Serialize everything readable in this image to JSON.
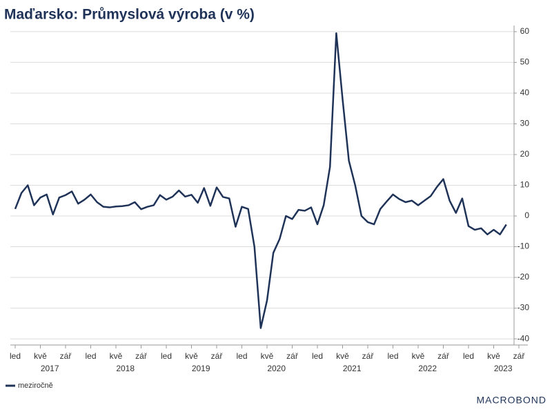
{
  "chart_data": {
    "type": "line",
    "title": "Maďarsko: Průmyslová výroba (v %)",
    "categories": [
      "led",
      null,
      null,
      null,
      "kvě",
      null,
      null,
      null,
      "zář",
      null,
      null,
      null,
      "led",
      null,
      null,
      null,
      "kvě",
      null,
      null,
      null,
      "zář",
      null,
      null,
      null,
      "led",
      null,
      null,
      null,
      "kvě",
      null,
      null,
      null,
      "zář",
      null,
      null,
      null,
      "led",
      null,
      null,
      null,
      "kvě",
      null,
      null,
      null,
      "zář",
      null,
      null,
      null,
      "led",
      null,
      null,
      null,
      "kvě",
      null,
      null,
      null,
      "zář",
      null,
      null,
      null,
      "led",
      null,
      null,
      null,
      "kvě",
      null,
      null,
      null,
      "zář",
      null,
      null,
      null,
      "led",
      null,
      null,
      null,
      "kvě",
      null,
      null,
      null,
      "zář"
    ],
    "years": [
      "2017",
      "2018",
      "2019",
      "2020",
      "2021",
      "2022",
      "2023"
    ],
    "series": [
      {
        "name": "meziročně",
        "color": "#1f3358",
        "values": [
          2.3,
          7.5,
          10,
          3.5,
          6,
          7,
          0.5,
          6,
          6.8,
          8,
          4,
          5.3,
          7,
          4.5,
          3,
          2.8,
          3.1,
          3.2,
          3.5,
          4.5,
          2.2,
          3,
          3.5,
          6.8,
          5.3,
          6.3,
          8.3,
          6.3,
          6.9,
          4.3,
          9.1,
          3.3,
          9.3,
          6.2,
          5.7,
          -3.5,
          3,
          2.3,
          -10,
          -36.5,
          -27.5,
          -12,
          -7.5,
          0,
          -1,
          2,
          1.7,
          2.8,
          -2.7,
          3.5,
          16,
          59.5,
          38,
          18,
          10,
          0,
          -2,
          -2.7,
          2.3,
          4.7,
          7,
          5.5,
          4.5,
          5,
          3.5,
          5,
          6.5,
          9.5,
          12,
          5,
          1,
          5.7,
          -3.3,
          -4.5,
          -4,
          -6,
          -4.5,
          -6,
          -2.8,
          null,
          null
        ]
      }
    ],
    "ylim": [
      -42,
      62
    ],
    "yticks": [
      -40,
      -30,
      -20,
      -10,
      0,
      10,
      20,
      30,
      40,
      50,
      60
    ],
    "grid": true,
    "legend": "bottom-left",
    "logo": "MACROBOND"
  }
}
